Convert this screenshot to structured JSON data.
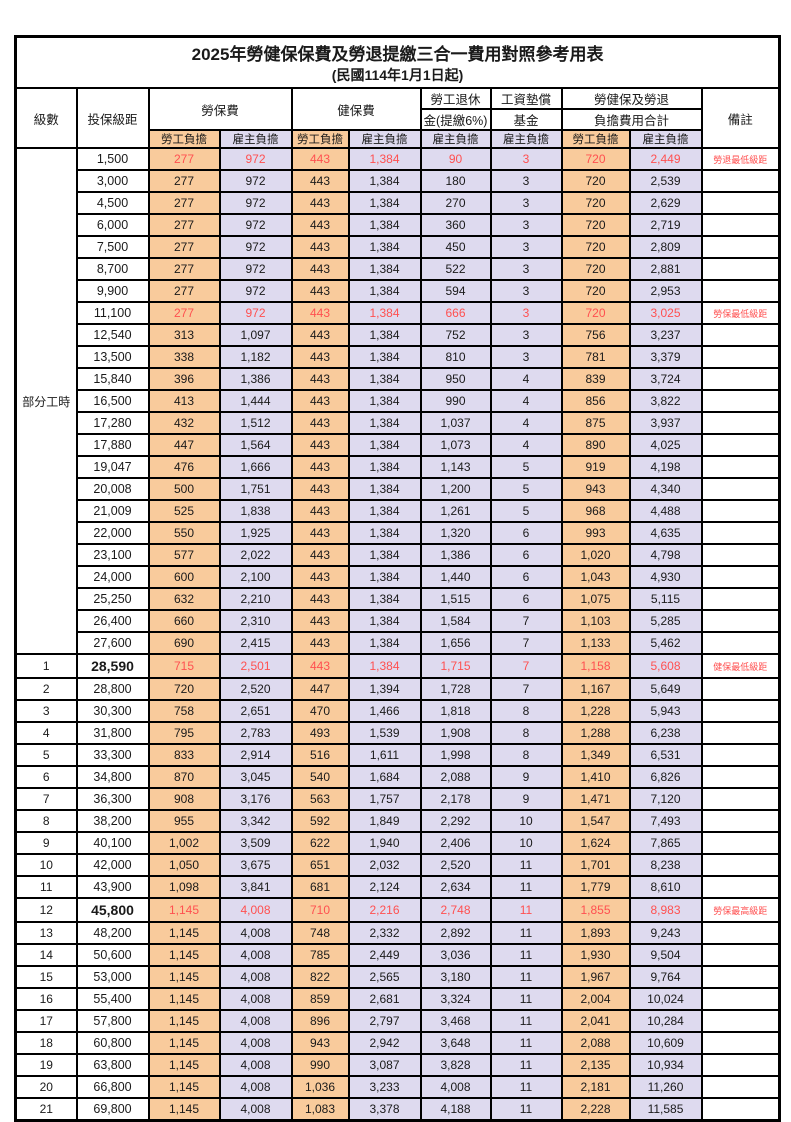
{
  "title": "2025年勞健保保費及勞退提繳三合一費用對照參考用表",
  "subtitle": "(民國114年1月1日起)",
  "colors": {
    "employee_bg": "#F9CB9C",
    "employer_bg": "#DEDAEF",
    "highlight_text": "#FF5050",
    "border": "#000000"
  },
  "header": {
    "level": "級數",
    "bracket": "投保級距",
    "labor_group": "勞保費",
    "health_group": "健保費",
    "pension_line1": "勞工退休",
    "pension_line2": "金(提繳6%)",
    "wage_fund_line1": "工資墊償",
    "wage_fund_line2": "基金",
    "total_line1": "勞健保及勞退",
    "total_line2": "負擔費用合計",
    "employee": "勞工負擔",
    "employer": "雇主負擔",
    "remark": "備註"
  },
  "part_time_label": "部分工時",
  "rows": [
    {
      "level": "部分工時",
      "level_rowspan": 23,
      "bracket": "1,500",
      "labor_emp": "277",
      "labor_er": "972",
      "health_emp": "443",
      "health_er": "1,384",
      "pension": "90",
      "wage_fund": "3",
      "total_emp": "720",
      "total_er": "2,449",
      "remark": "勞退最低級距",
      "highlight": true,
      "emphasis": false
    },
    {
      "level": null,
      "bracket": "3,000",
      "labor_emp": "277",
      "labor_er": "972",
      "health_emp": "443",
      "health_er": "1,384",
      "pension": "180",
      "wage_fund": "3",
      "total_emp": "720",
      "total_er": "2,539",
      "remark": "",
      "highlight": false,
      "emphasis": false
    },
    {
      "level": null,
      "bracket": "4,500",
      "labor_emp": "277",
      "labor_er": "972",
      "health_emp": "443",
      "health_er": "1,384",
      "pension": "270",
      "wage_fund": "3",
      "total_emp": "720",
      "total_er": "2,629",
      "remark": "",
      "highlight": false,
      "emphasis": false
    },
    {
      "level": null,
      "bracket": "6,000",
      "labor_emp": "277",
      "labor_er": "972",
      "health_emp": "443",
      "health_er": "1,384",
      "pension": "360",
      "wage_fund": "3",
      "total_emp": "720",
      "total_er": "2,719",
      "remark": "",
      "highlight": false,
      "emphasis": false
    },
    {
      "level": null,
      "bracket": "7,500",
      "labor_emp": "277",
      "labor_er": "972",
      "health_emp": "443",
      "health_er": "1,384",
      "pension": "450",
      "wage_fund": "3",
      "total_emp": "720",
      "total_er": "2,809",
      "remark": "",
      "highlight": false,
      "emphasis": false
    },
    {
      "level": null,
      "bracket": "8,700",
      "labor_emp": "277",
      "labor_er": "972",
      "health_emp": "443",
      "health_er": "1,384",
      "pension": "522",
      "wage_fund": "3",
      "total_emp": "720",
      "total_er": "2,881",
      "remark": "",
      "highlight": false,
      "emphasis": false
    },
    {
      "level": null,
      "bracket": "9,900",
      "labor_emp": "277",
      "labor_er": "972",
      "health_emp": "443",
      "health_er": "1,384",
      "pension": "594",
      "wage_fund": "3",
      "total_emp": "720",
      "total_er": "2,953",
      "remark": "",
      "highlight": false,
      "emphasis": false
    },
    {
      "level": null,
      "bracket": "11,100",
      "labor_emp": "277",
      "labor_er": "972",
      "health_emp": "443",
      "health_er": "1,384",
      "pension": "666",
      "wage_fund": "3",
      "total_emp": "720",
      "total_er": "3,025",
      "remark": "勞保最低級距",
      "highlight": true,
      "emphasis": false
    },
    {
      "level": null,
      "bracket": "12,540",
      "labor_emp": "313",
      "labor_er": "1,097",
      "health_emp": "443",
      "health_er": "1,384",
      "pension": "752",
      "wage_fund": "3",
      "total_emp": "756",
      "total_er": "3,237",
      "remark": "",
      "highlight": false,
      "emphasis": false
    },
    {
      "level": null,
      "bracket": "13,500",
      "labor_emp": "338",
      "labor_er": "1,182",
      "health_emp": "443",
      "health_er": "1,384",
      "pension": "810",
      "wage_fund": "3",
      "total_emp": "781",
      "total_er": "3,379",
      "remark": "",
      "highlight": false,
      "emphasis": false
    },
    {
      "level": null,
      "bracket": "15,840",
      "labor_emp": "396",
      "labor_er": "1,386",
      "health_emp": "443",
      "health_er": "1,384",
      "pension": "950",
      "wage_fund": "4",
      "total_emp": "839",
      "total_er": "3,724",
      "remark": "",
      "highlight": false,
      "emphasis": false
    },
    {
      "level": null,
      "bracket": "16,500",
      "labor_emp": "413",
      "labor_er": "1,444",
      "health_emp": "443",
      "health_er": "1,384",
      "pension": "990",
      "wage_fund": "4",
      "total_emp": "856",
      "total_er": "3,822",
      "remark": "",
      "highlight": false,
      "emphasis": false
    },
    {
      "level": null,
      "bracket": "17,280",
      "labor_emp": "432",
      "labor_er": "1,512",
      "health_emp": "443",
      "health_er": "1,384",
      "pension": "1,037",
      "wage_fund": "4",
      "total_emp": "875",
      "total_er": "3,937",
      "remark": "",
      "highlight": false,
      "emphasis": false
    },
    {
      "level": null,
      "bracket": "17,880",
      "labor_emp": "447",
      "labor_er": "1,564",
      "health_emp": "443",
      "health_er": "1,384",
      "pension": "1,073",
      "wage_fund": "4",
      "total_emp": "890",
      "total_er": "4,025",
      "remark": "",
      "highlight": false,
      "emphasis": false
    },
    {
      "level": null,
      "bracket": "19,047",
      "labor_emp": "476",
      "labor_er": "1,666",
      "health_emp": "443",
      "health_er": "1,384",
      "pension": "1,143",
      "wage_fund": "5",
      "total_emp": "919",
      "total_er": "4,198",
      "remark": "",
      "highlight": false,
      "emphasis": false
    },
    {
      "level": null,
      "bracket": "20,008",
      "labor_emp": "500",
      "labor_er": "1,751",
      "health_emp": "443",
      "health_er": "1,384",
      "pension": "1,200",
      "wage_fund": "5",
      "total_emp": "943",
      "total_er": "4,340",
      "remark": "",
      "highlight": false,
      "emphasis": false
    },
    {
      "level": null,
      "bracket": "21,009",
      "labor_emp": "525",
      "labor_er": "1,838",
      "health_emp": "443",
      "health_er": "1,384",
      "pension": "1,261",
      "wage_fund": "5",
      "total_emp": "968",
      "total_er": "4,488",
      "remark": "",
      "highlight": false,
      "emphasis": false
    },
    {
      "level": null,
      "bracket": "22,000",
      "labor_emp": "550",
      "labor_er": "1,925",
      "health_emp": "443",
      "health_er": "1,384",
      "pension": "1,320",
      "wage_fund": "6",
      "total_emp": "993",
      "total_er": "4,635",
      "remark": "",
      "highlight": false,
      "emphasis": false
    },
    {
      "level": null,
      "bracket": "23,100",
      "labor_emp": "577",
      "labor_er": "2,022",
      "health_emp": "443",
      "health_er": "1,384",
      "pension": "1,386",
      "wage_fund": "6",
      "total_emp": "1,020",
      "total_er": "4,798",
      "remark": "",
      "highlight": false,
      "emphasis": false
    },
    {
      "level": null,
      "bracket": "24,000",
      "labor_emp": "600",
      "labor_er": "2,100",
      "health_emp": "443",
      "health_er": "1,384",
      "pension": "1,440",
      "wage_fund": "6",
      "total_emp": "1,043",
      "total_er": "4,930",
      "remark": "",
      "highlight": false,
      "emphasis": false
    },
    {
      "level": null,
      "bracket": "25,250",
      "labor_emp": "632",
      "labor_er": "2,210",
      "health_emp": "443",
      "health_er": "1,384",
      "pension": "1,515",
      "wage_fund": "6",
      "total_emp": "1,075",
      "total_er": "5,115",
      "remark": "",
      "highlight": false,
      "emphasis": false
    },
    {
      "level": null,
      "bracket": "26,400",
      "labor_emp": "660",
      "labor_er": "2,310",
      "health_emp": "443",
      "health_er": "1,384",
      "pension": "1,584",
      "wage_fund": "7",
      "total_emp": "1,103",
      "total_er": "5,285",
      "remark": "",
      "highlight": false,
      "emphasis": false
    },
    {
      "level": null,
      "bracket": "27,600",
      "labor_emp": "690",
      "labor_er": "2,415",
      "health_emp": "443",
      "health_er": "1,384",
      "pension": "1,656",
      "wage_fund": "7",
      "total_emp": "1,133",
      "total_er": "5,462",
      "remark": "",
      "highlight": false,
      "emphasis": false
    },
    {
      "level": "1",
      "bracket": "28,590",
      "labor_emp": "715",
      "labor_er": "2,501",
      "health_emp": "443",
      "health_er": "1,384",
      "pension": "1,715",
      "wage_fund": "7",
      "total_emp": "1,158",
      "total_er": "5,608",
      "remark": "健保最低級距",
      "highlight": true,
      "emphasis": true
    },
    {
      "level": "2",
      "bracket": "28,800",
      "labor_emp": "720",
      "labor_er": "2,520",
      "health_emp": "447",
      "health_er": "1,394",
      "pension": "1,728",
      "wage_fund": "7",
      "total_emp": "1,167",
      "total_er": "5,649",
      "remark": "",
      "highlight": false,
      "emphasis": false
    },
    {
      "level": "3",
      "bracket": "30,300",
      "labor_emp": "758",
      "labor_er": "2,651",
      "health_emp": "470",
      "health_er": "1,466",
      "pension": "1,818",
      "wage_fund": "8",
      "total_emp": "1,228",
      "total_er": "5,943",
      "remark": "",
      "highlight": false,
      "emphasis": false
    },
    {
      "level": "4",
      "bracket": "31,800",
      "labor_emp": "795",
      "labor_er": "2,783",
      "health_emp": "493",
      "health_er": "1,539",
      "pension": "1,908",
      "wage_fund": "8",
      "total_emp": "1,288",
      "total_er": "6,238",
      "remark": "",
      "highlight": false,
      "emphasis": false
    },
    {
      "level": "5",
      "bracket": "33,300",
      "labor_emp": "833",
      "labor_er": "2,914",
      "health_emp": "516",
      "health_er": "1,611",
      "pension": "1,998",
      "wage_fund": "8",
      "total_emp": "1,349",
      "total_er": "6,531",
      "remark": "",
      "highlight": false,
      "emphasis": false
    },
    {
      "level": "6",
      "bracket": "34,800",
      "labor_emp": "870",
      "labor_er": "3,045",
      "health_emp": "540",
      "health_er": "1,684",
      "pension": "2,088",
      "wage_fund": "9",
      "total_emp": "1,410",
      "total_er": "6,826",
      "remark": "",
      "highlight": false,
      "emphasis": false
    },
    {
      "level": "7",
      "bracket": "36,300",
      "labor_emp": "908",
      "labor_er": "3,176",
      "health_emp": "563",
      "health_er": "1,757",
      "pension": "2,178",
      "wage_fund": "9",
      "total_emp": "1,471",
      "total_er": "7,120",
      "remark": "",
      "highlight": false,
      "emphasis": false
    },
    {
      "level": "8",
      "bracket": "38,200",
      "labor_emp": "955",
      "labor_er": "3,342",
      "health_emp": "592",
      "health_er": "1,849",
      "pension": "2,292",
      "wage_fund": "10",
      "total_emp": "1,547",
      "total_er": "7,493",
      "remark": "",
      "highlight": false,
      "emphasis": false
    },
    {
      "level": "9",
      "bracket": "40,100",
      "labor_emp": "1,002",
      "labor_er": "3,509",
      "health_emp": "622",
      "health_er": "1,940",
      "pension": "2,406",
      "wage_fund": "10",
      "total_emp": "1,624",
      "total_er": "7,865",
      "remark": "",
      "highlight": false,
      "emphasis": false
    },
    {
      "level": "10",
      "bracket": "42,000",
      "labor_emp": "1,050",
      "labor_er": "3,675",
      "health_emp": "651",
      "health_er": "2,032",
      "pension": "2,520",
      "wage_fund": "11",
      "total_emp": "1,701",
      "total_er": "8,238",
      "remark": "",
      "highlight": false,
      "emphasis": false
    },
    {
      "level": "11",
      "bracket": "43,900",
      "labor_emp": "1,098",
      "labor_er": "3,841",
      "health_emp": "681",
      "health_er": "2,124",
      "pension": "2,634",
      "wage_fund": "11",
      "total_emp": "1,779",
      "total_er": "8,610",
      "remark": "",
      "highlight": false,
      "emphasis": false
    },
    {
      "level": "12",
      "bracket": "45,800",
      "labor_emp": "1,145",
      "labor_er": "4,008",
      "health_emp": "710",
      "health_er": "2,216",
      "pension": "2,748",
      "wage_fund": "11",
      "total_emp": "1,855",
      "total_er": "8,983",
      "remark": "勞保最高級距",
      "highlight": true,
      "emphasis": true
    },
    {
      "level": "13",
      "bracket": "48,200",
      "labor_emp": "1,145",
      "labor_er": "4,008",
      "health_emp": "748",
      "health_er": "2,332",
      "pension": "2,892",
      "wage_fund": "11",
      "total_emp": "1,893",
      "total_er": "9,243",
      "remark": "",
      "highlight": false,
      "emphasis": false
    },
    {
      "level": "14",
      "bracket": "50,600",
      "labor_emp": "1,145",
      "labor_er": "4,008",
      "health_emp": "785",
      "health_er": "2,449",
      "pension": "3,036",
      "wage_fund": "11",
      "total_emp": "1,930",
      "total_er": "9,504",
      "remark": "",
      "highlight": false,
      "emphasis": false
    },
    {
      "level": "15",
      "bracket": "53,000",
      "labor_emp": "1,145",
      "labor_er": "4,008",
      "health_emp": "822",
      "health_er": "2,565",
      "pension": "3,180",
      "wage_fund": "11",
      "total_emp": "1,967",
      "total_er": "9,764",
      "remark": "",
      "highlight": false,
      "emphasis": false
    },
    {
      "level": "16",
      "bracket": "55,400",
      "labor_emp": "1,145",
      "labor_er": "4,008",
      "health_emp": "859",
      "health_er": "2,681",
      "pension": "3,324",
      "wage_fund": "11",
      "total_emp": "2,004",
      "total_er": "10,024",
      "remark": "",
      "highlight": false,
      "emphasis": false
    },
    {
      "level": "17",
      "bracket": "57,800",
      "labor_emp": "1,145",
      "labor_er": "4,008",
      "health_emp": "896",
      "health_er": "2,797",
      "pension": "3,468",
      "wage_fund": "11",
      "total_emp": "2,041",
      "total_er": "10,284",
      "remark": "",
      "highlight": false,
      "emphasis": false
    },
    {
      "level": "18",
      "bracket": "60,800",
      "labor_emp": "1,145",
      "labor_er": "4,008",
      "health_emp": "943",
      "health_er": "2,942",
      "pension": "3,648",
      "wage_fund": "11",
      "total_emp": "2,088",
      "total_er": "10,609",
      "remark": "",
      "highlight": false,
      "emphasis": false
    },
    {
      "level": "19",
      "bracket": "63,800",
      "labor_emp": "1,145",
      "labor_er": "4,008",
      "health_emp": "990",
      "health_er": "3,087",
      "pension": "3,828",
      "wage_fund": "11",
      "total_emp": "2,135",
      "total_er": "10,934",
      "remark": "",
      "highlight": false,
      "emphasis": false
    },
    {
      "level": "20",
      "bracket": "66,800",
      "labor_emp": "1,145",
      "labor_er": "4,008",
      "health_emp": "1,036",
      "health_er": "3,233",
      "pension": "4,008",
      "wage_fund": "11",
      "total_emp": "2,181",
      "total_er": "11,260",
      "remark": "",
      "highlight": false,
      "emphasis": false
    },
    {
      "level": "21",
      "bracket": "69,800",
      "labor_emp": "1,145",
      "labor_er": "4,008",
      "health_emp": "1,083",
      "health_er": "3,378",
      "pension": "4,188",
      "wage_fund": "11",
      "total_emp": "2,228",
      "total_er": "11,585",
      "remark": "",
      "highlight": false,
      "emphasis": false
    }
  ]
}
